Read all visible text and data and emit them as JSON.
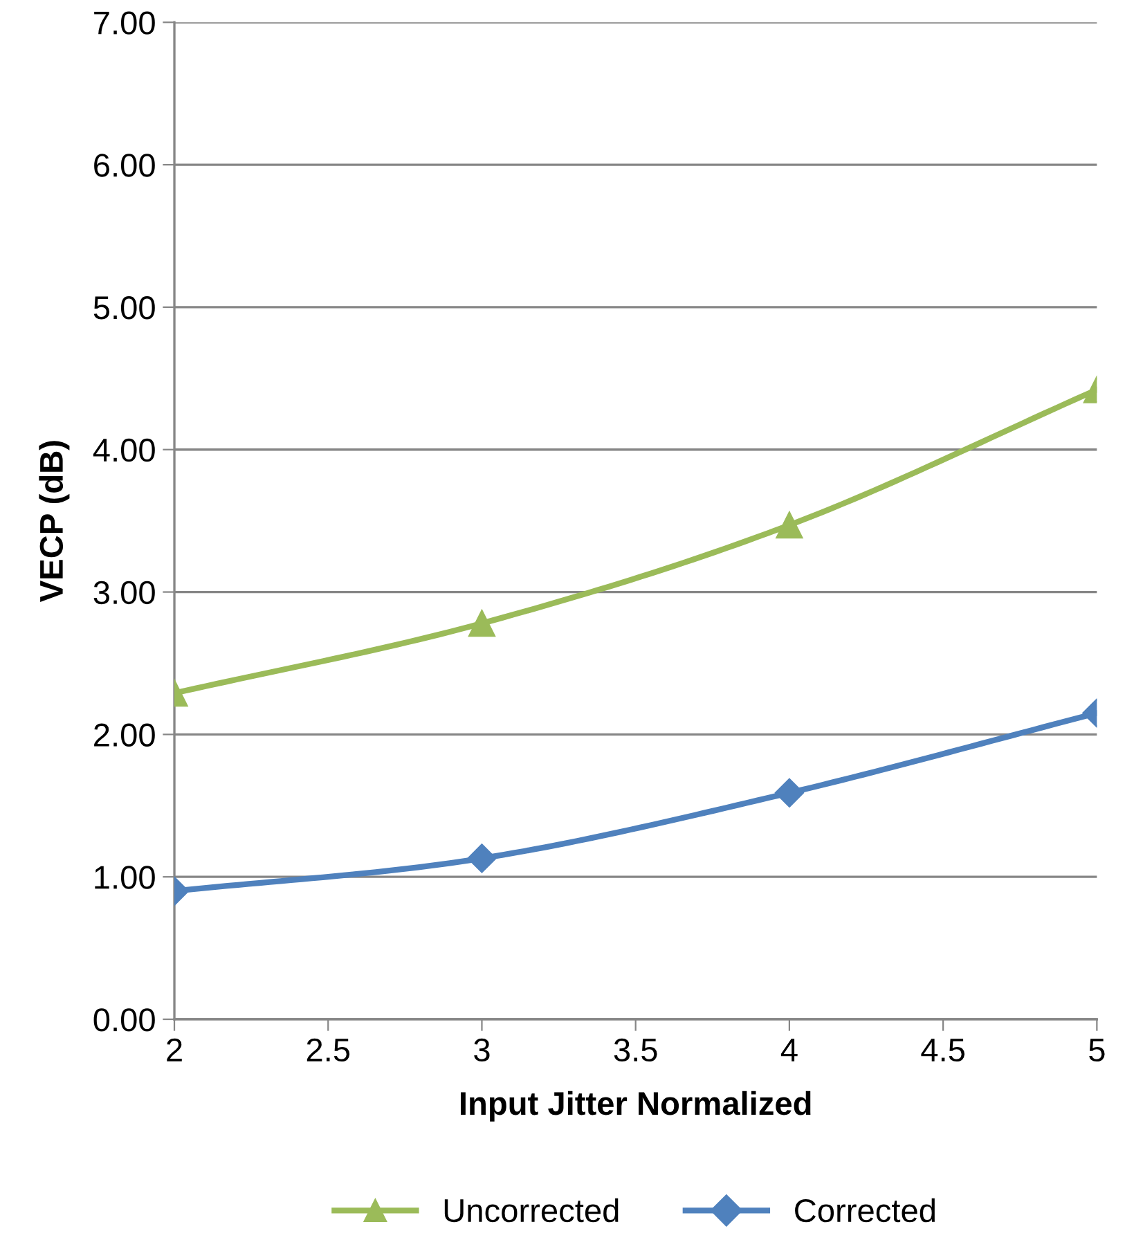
{
  "chart_data": {
    "type": "line",
    "xlabel": "Input Jitter Normalized",
    "ylabel": "VECP (dB)",
    "x": [
      2,
      3,
      4,
      5
    ],
    "series": [
      {
        "name": "Uncorrected",
        "color": "#9bbb59",
        "values": [
          2.29,
          2.78,
          3.47,
          4.42
        ],
        "marker": "triangle"
      },
      {
        "name": "Corrected",
        "color": "#4f81bd",
        "values": [
          0.9,
          1.13,
          1.59,
          2.15
        ],
        "marker": "diamond"
      }
    ],
    "xlim": [
      2,
      5
    ],
    "xticks": [
      2,
      2.5,
      3,
      3.5,
      4,
      4.5,
      5
    ],
    "ylim": [
      0,
      7
    ],
    "yticks": [
      {
        "value": 0,
        "label": "0.00"
      },
      {
        "value": 1,
        "label": "1.00"
      },
      {
        "value": 2,
        "label": "2.00"
      },
      {
        "value": 3,
        "label": "3.00"
      },
      {
        "value": 4,
        "label": "4.00"
      },
      {
        "value": 5,
        "label": "5.00"
      },
      {
        "value": 6,
        "label": "6.00"
      },
      {
        "value": 7,
        "label": "7.00"
      }
    ],
    "grid": "y",
    "legend": "bottom",
    "line_style": "solid"
  }
}
